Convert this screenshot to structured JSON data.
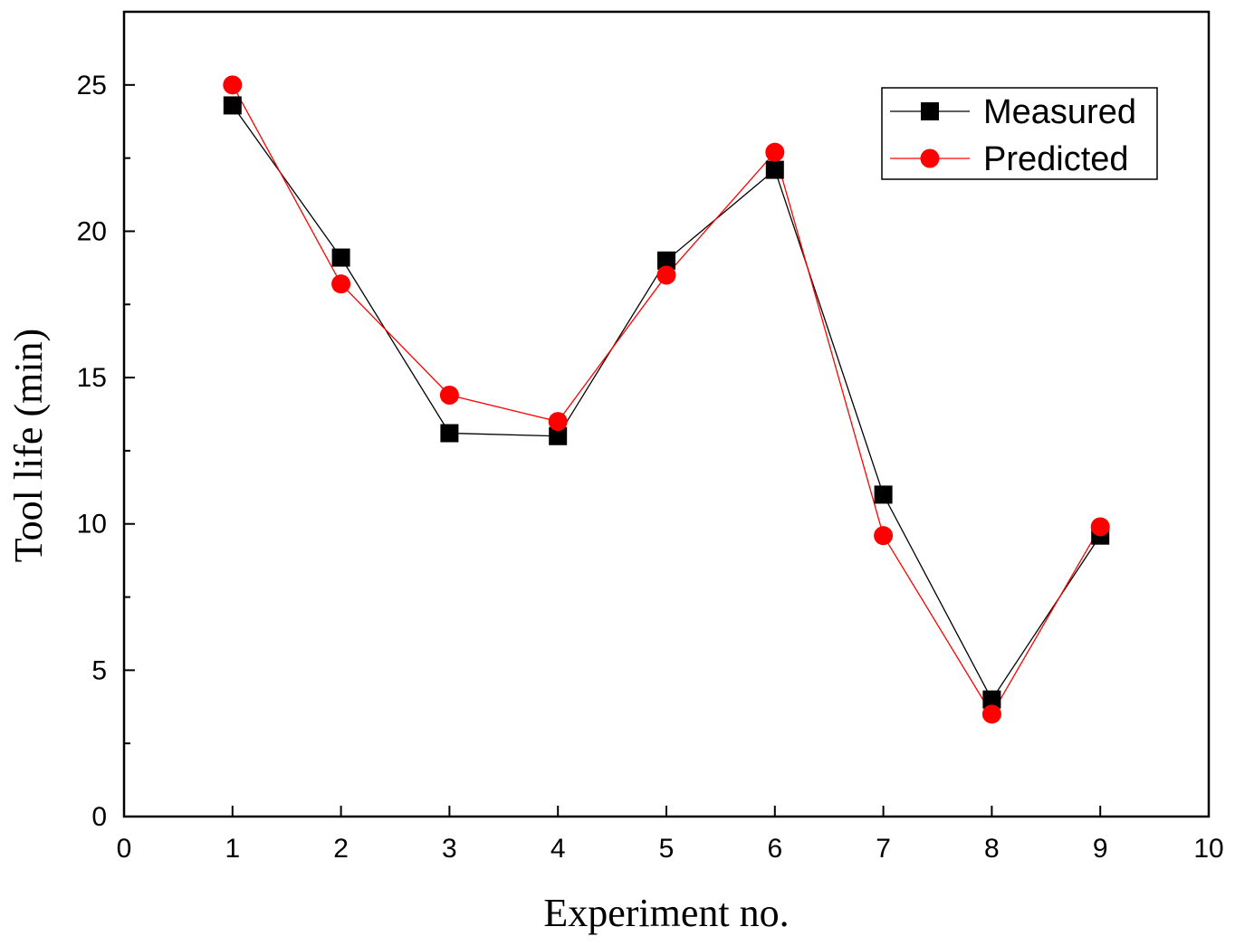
{
  "chart_data": {
    "type": "line",
    "title": "",
    "xlabel": "Experiment no.",
    "ylabel": "Tool life (min)",
    "xlim": [
      0,
      10
    ],
    "ylim": [
      0,
      27.5
    ],
    "x_ticks": [
      0,
      1,
      2,
      3,
      4,
      5,
      6,
      7,
      8,
      9,
      10
    ],
    "y_ticks": [
      0,
      5,
      10,
      15,
      20,
      25
    ],
    "grid": false,
    "legend_position": "top-right",
    "x": [
      1,
      2,
      3,
      4,
      5,
      6,
      7,
      8,
      9
    ],
    "series": [
      {
        "name": "Measured",
        "color": "#000000",
        "marker": "square",
        "values": [
          24.3,
          19.1,
          13.1,
          13.0,
          19.0,
          22.1,
          11.0,
          4.0,
          9.6
        ]
      },
      {
        "name": "Predicted",
        "color": "#ff0000",
        "marker": "circle",
        "values": [
          25.0,
          18.2,
          14.4,
          13.5,
          18.5,
          22.7,
          9.6,
          3.5,
          9.9
        ]
      }
    ]
  }
}
